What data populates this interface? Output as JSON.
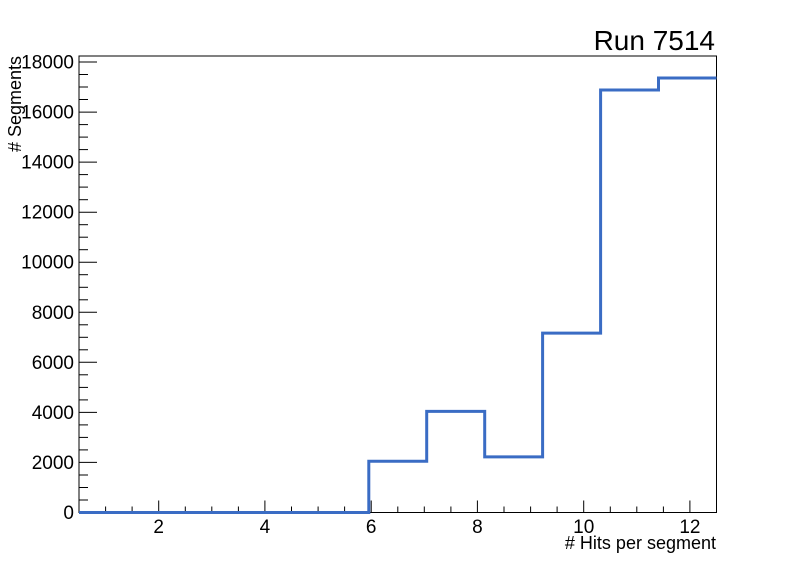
{
  "window": {
    "background_color": "#ffffff"
  },
  "chart_data": {
    "type": "bar",
    "subtype": "step-histogram",
    "title": "Run 7514",
    "xlabel": "# Hits per segment",
    "ylabel": "# Segments",
    "x_range": [
      0.5,
      12.5
    ],
    "y_range": [
      0,
      18240
    ],
    "n_bins": 11,
    "bin_edges": [
      0.5,
      1.591,
      2.682,
      3.773,
      4.864,
      5.955,
      7.045,
      8.136,
      9.227,
      10.318,
      11.409,
      12.5
    ],
    "bin_values": [
      0,
      0,
      0,
      0,
      0,
      2050,
      4040,
      2220,
      7170,
      16880,
      17360
    ],
    "x_major_ticks": [
      2,
      4,
      6,
      8,
      10,
      12
    ],
    "x_tick_labels": [
      "2",
      "4",
      "6",
      "8",
      "10",
      "12"
    ],
    "x_minor_step": 0.5,
    "y_major_ticks": [
      0,
      2000,
      4000,
      6000,
      8000,
      10000,
      12000,
      14000,
      16000,
      18000
    ],
    "y_tick_labels": [
      "0",
      "2000",
      "4000",
      "6000",
      "8000",
      "10000",
      "12000",
      "14000",
      "16000",
      "18000"
    ],
    "y_minor_step": 500,
    "line_color": "#3a6cc4",
    "axis_color": "#000000",
    "grid": false,
    "legend": null
  }
}
